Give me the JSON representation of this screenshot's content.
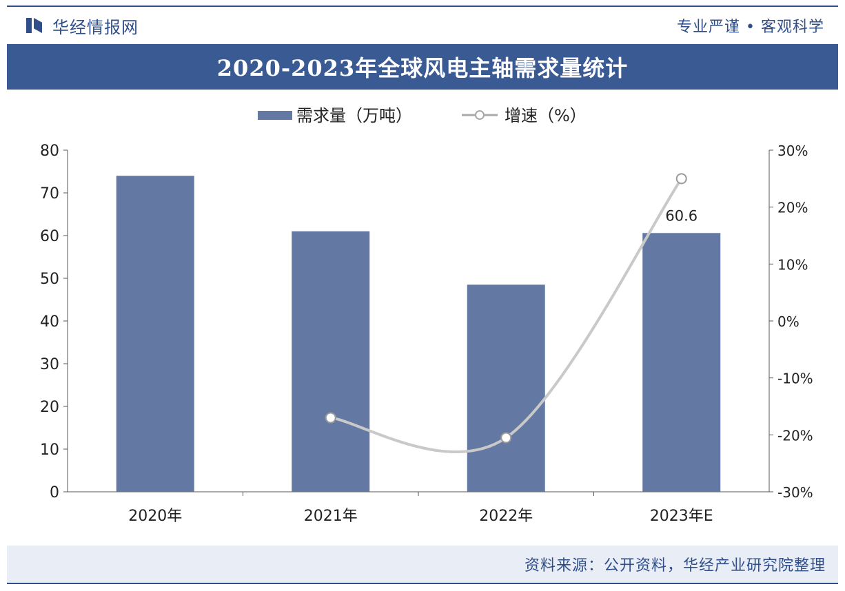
{
  "header": {
    "brand": "华经情报网",
    "slogan": "专业严谨 • 客观科学"
  },
  "title": "2020-2023年全球风电主轴需求量统计",
  "source": "资料来源：公开资料，华经产业研究院整理",
  "colors": {
    "bar": "#6379a3",
    "line": "#c9c9c9",
    "title_bg": "#3a5a93",
    "accent": "#2f4e8a"
  },
  "chart_data": {
    "type": "bar",
    "categories": [
      "2020年",
      "2021年",
      "2022年",
      "2023年E"
    ],
    "series": [
      {
        "name": "需求量（万吨）",
        "type": "bar",
        "axis": "left",
        "values": [
          74.0,
          61.0,
          48.5,
          60.6
        ]
      },
      {
        "name": "增速（%）",
        "type": "line",
        "axis": "right",
        "values": [
          null,
          -17.0,
          -20.5,
          25.0
        ]
      }
    ],
    "data_labels": [
      {
        "series": 0,
        "index": 3,
        "text": "60.6"
      }
    ],
    "ylim_left": [
      0,
      80
    ],
    "yticks_left": [
      "0",
      "10",
      "20",
      "30",
      "40",
      "50",
      "60",
      "70",
      "80"
    ],
    "ylim_right": [
      -30,
      30
    ],
    "yticks_right": [
      "-30%",
      "-20%",
      "-10%",
      "0%",
      "10%",
      "20%",
      "30%"
    ],
    "legend_position": "top-center",
    "grid": false
  }
}
